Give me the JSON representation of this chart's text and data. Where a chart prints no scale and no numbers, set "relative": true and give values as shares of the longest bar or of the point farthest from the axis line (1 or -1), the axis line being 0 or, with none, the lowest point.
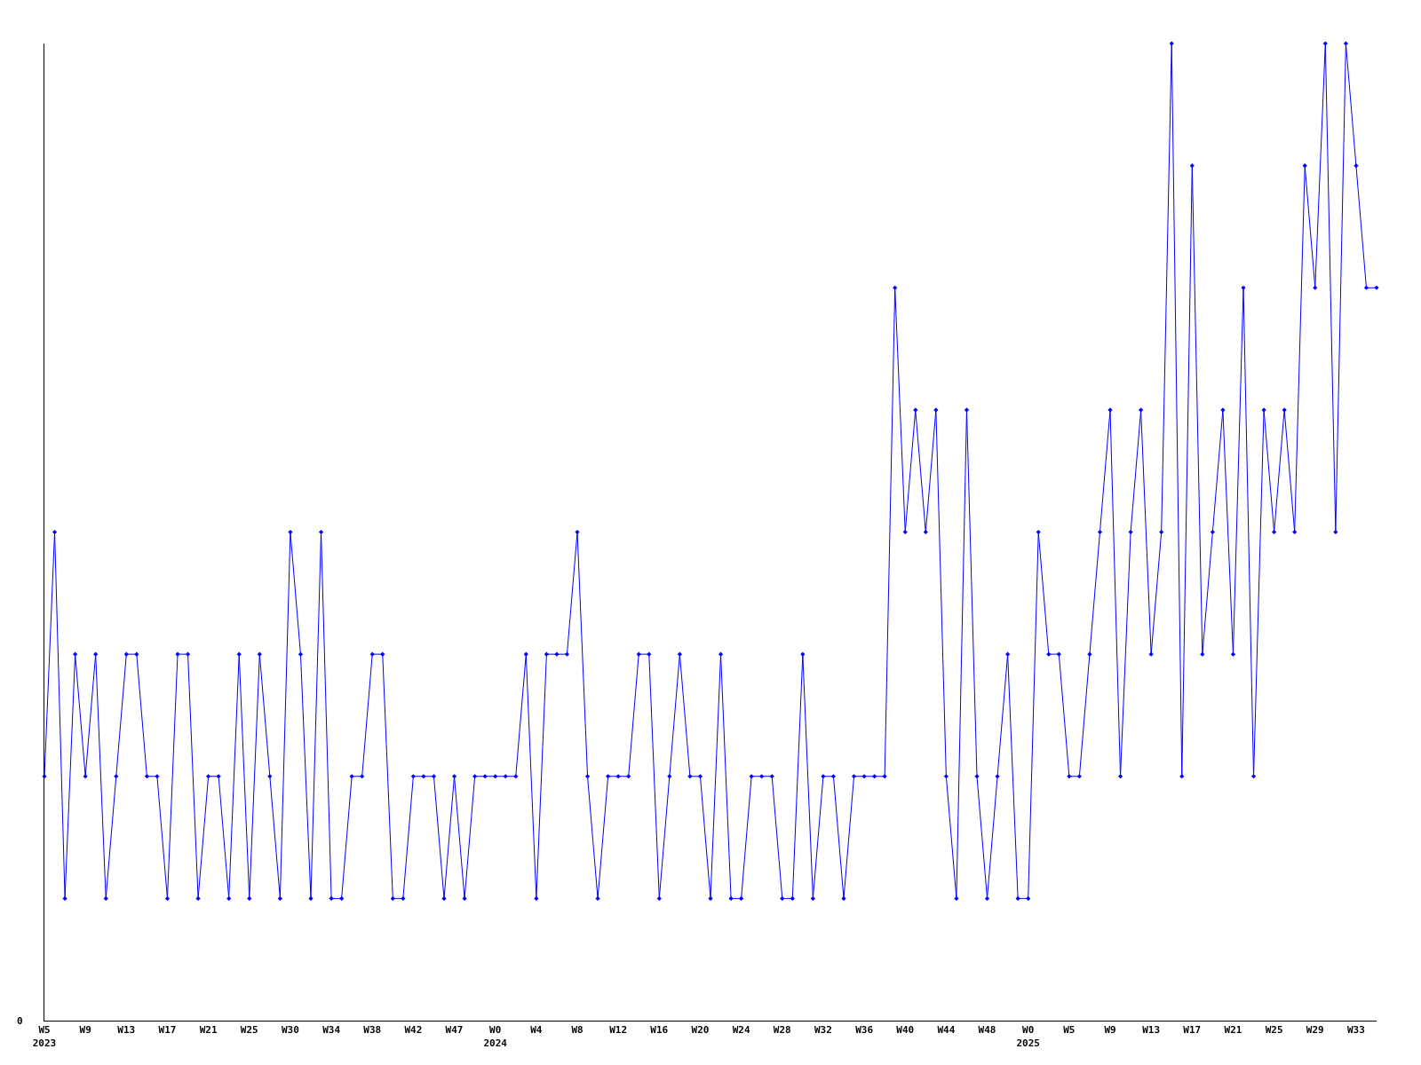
{
  "chart_data": {
    "type": "line",
    "relative": true,
    "marker": "diamond",
    "line_style": "solid",
    "annotations": [
      "0"
    ],
    "categories": [
      "W5\n2023",
      null,
      null,
      null,
      "W9",
      null,
      null,
      null,
      "W13",
      null,
      null,
      null,
      "W17",
      null,
      null,
      null,
      "W21",
      null,
      null,
      null,
      "W25",
      null,
      null,
      null,
      "W30",
      null,
      null,
      null,
      "W34",
      null,
      null,
      null,
      "W38",
      null,
      null,
      null,
      "W42",
      null,
      null,
      null,
      "W47",
      null,
      null,
      null,
      "W0\n2024",
      null,
      null,
      null,
      "W4",
      null,
      null,
      null,
      "W8",
      null,
      null,
      null,
      "W12",
      null,
      null,
      null,
      "W16",
      null,
      null,
      null,
      "W20",
      null,
      null,
      null,
      "W24",
      null,
      null,
      null,
      "W28",
      null,
      null,
      null,
      "W32",
      null,
      null,
      null,
      "W36",
      null,
      null,
      null,
      "W40",
      null,
      null,
      null,
      "W44",
      null,
      null,
      null,
      "W48",
      null,
      null,
      null,
      "W0\n2025",
      null,
      null,
      null,
      "W5",
      null,
      null,
      null,
      "W9",
      null,
      null,
      null,
      "W13",
      null,
      null,
      null,
      "W17",
      null,
      null,
      null,
      "W21",
      null,
      null,
      null,
      "W25",
      null,
      null,
      null,
      "W29",
      null,
      null,
      null,
      "W33",
      null,
      null
    ],
    "series": [
      {
        "color": "#0000ff",
        "values": [
          0.25,
          0.5,
          0.125,
          0.375,
          0.25,
          0.375,
          0.125,
          0.25,
          0.375,
          0.375,
          0.25,
          0.25,
          0.125,
          0.375,
          0.375,
          0.125,
          0.25,
          0.25,
          0.125,
          0.375,
          0.125,
          0.375,
          0.25,
          0.125,
          0.5,
          0.375,
          0.125,
          0.5,
          0.125,
          0.125,
          0.25,
          0.25,
          0.375,
          0.375,
          0.125,
          0.125,
          0.25,
          0.25,
          0.25,
          0.125,
          0.25,
          0.125,
          0.25,
          0.25,
          0.25,
          0.25,
          0.25,
          0.375,
          0.125,
          0.375,
          0.375,
          0.375,
          0.5,
          0.25,
          0.125,
          0.25,
          0.25,
          0.25,
          0.375,
          0.375,
          0.125,
          0.25,
          0.375,
          0.25,
          0.25,
          0.125,
          0.375,
          0.125,
          0.125,
          0.25,
          0.25,
          0.25,
          0.125,
          0.125,
          0.375,
          0.125,
          0.25,
          0.25,
          0.125,
          0.25,
          0.25,
          0.25,
          0.25,
          0.75,
          0.5,
          0.625,
          0.5,
          0.625,
          0.25,
          0.125,
          0.625,
          0.25,
          0.125,
          0.25,
          0.375,
          0.125,
          0.125,
          0.5,
          0.375,
          0.375,
          0.25,
          0.25,
          0.375,
          0.5,
          0.625,
          0.25,
          0.5,
          0.625,
          0.375,
          0.5,
          1,
          0.25,
          0.875,
          0.375,
          0.5,
          0.625,
          0.375,
          0.75,
          0.25,
          0.625,
          0.5,
          0.625,
          0.5,
          0.875,
          0.75,
          1,
          0.5,
          1,
          0.875,
          0.75,
          0.75
        ]
      }
    ]
  }
}
